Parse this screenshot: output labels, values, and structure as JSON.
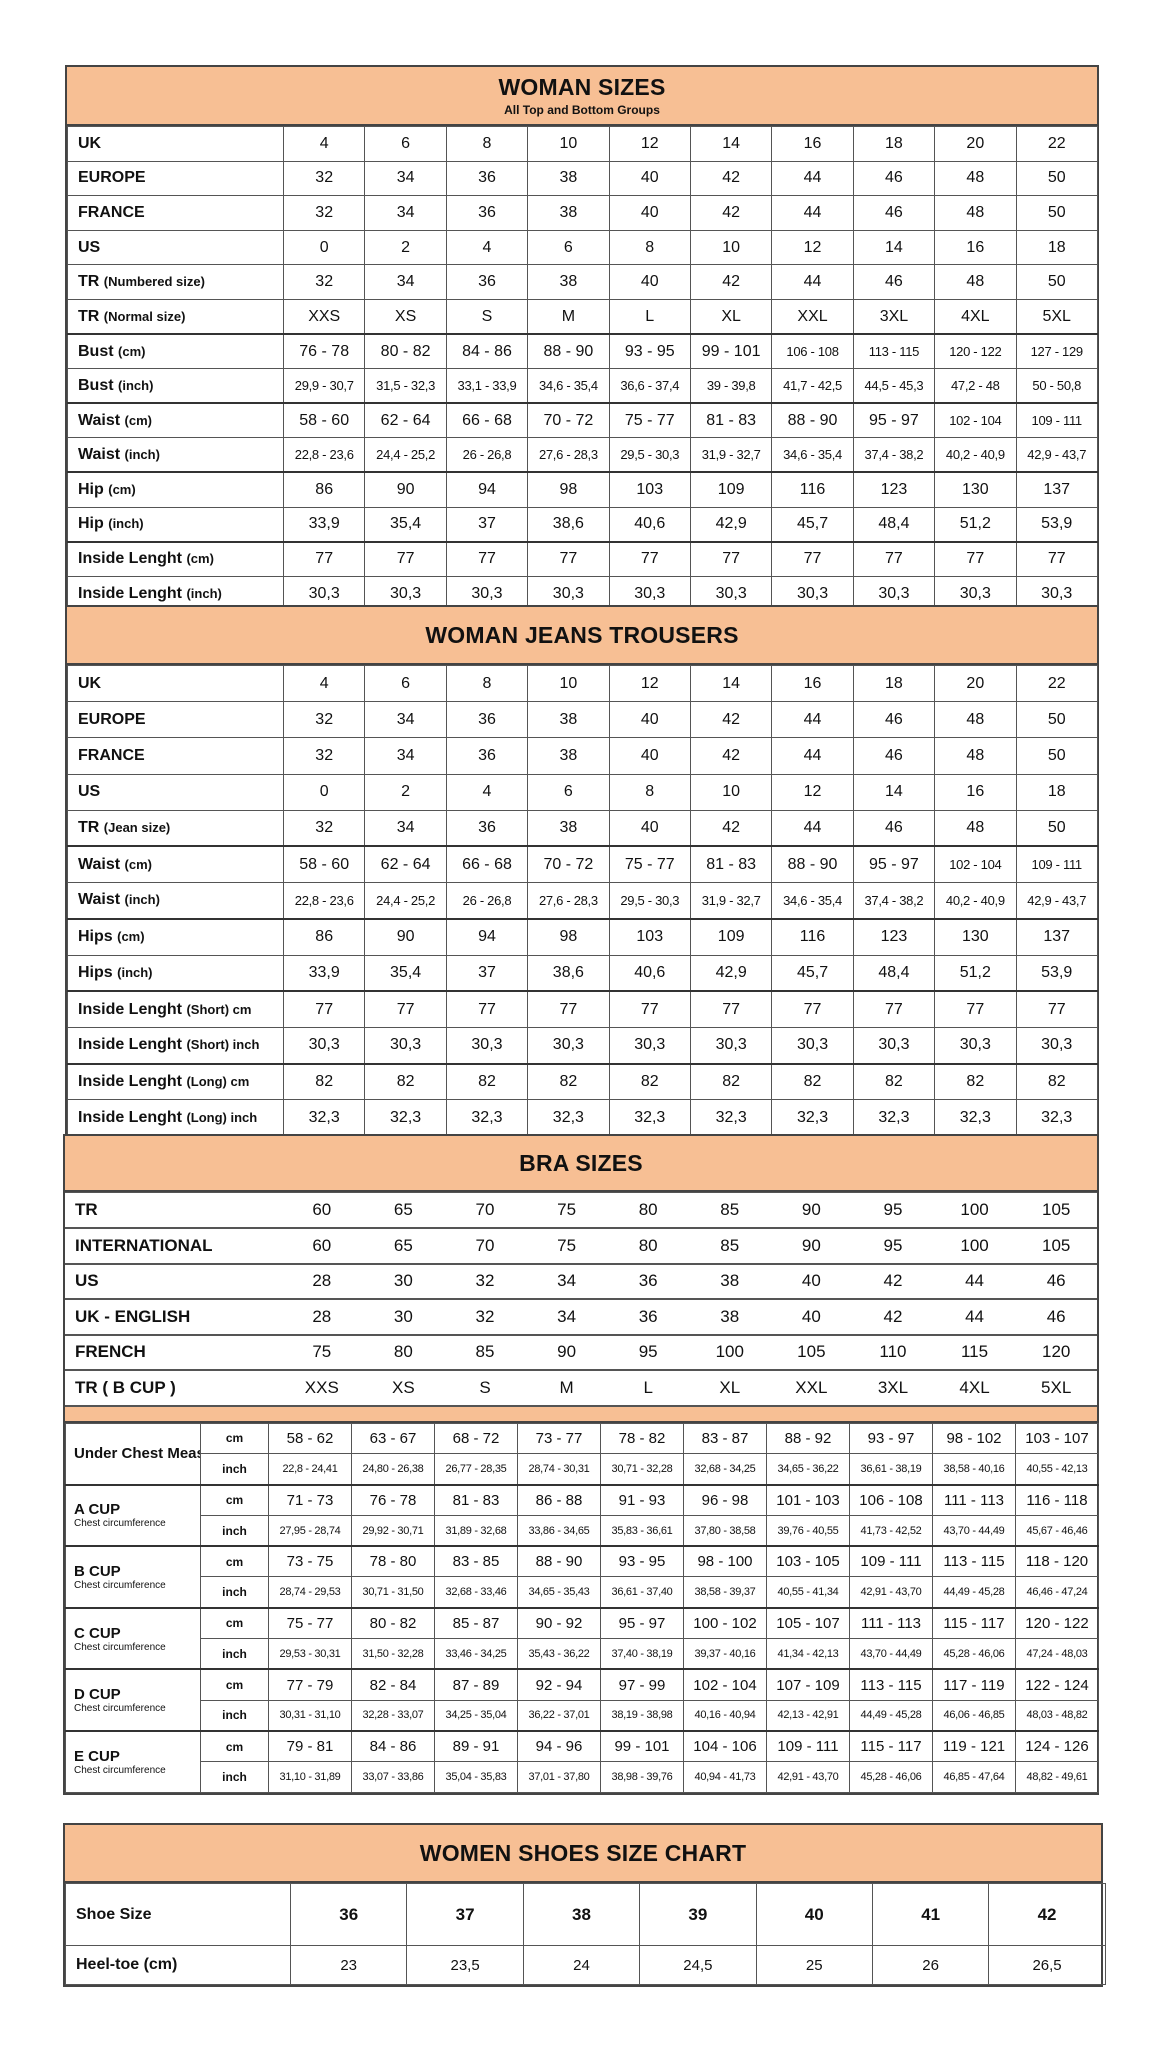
{
  "colors": {
    "header_bg": "#f7bf94",
    "border": "#444444"
  },
  "woman_sizes": {
    "title": "WOMAN SIZES",
    "subtitle": "All Top and Bottom Groups",
    "groups": [
      [
        {
          "label": "UK",
          "unit": "",
          "values": [
            "4",
            "6",
            "8",
            "10",
            "12",
            "14",
            "16",
            "18",
            "20",
            "22"
          ]
        },
        {
          "label": "EUROPE",
          "unit": "",
          "values": [
            "32",
            "34",
            "36",
            "38",
            "40",
            "42",
            "44",
            "46",
            "48",
            "50"
          ]
        },
        {
          "label": "FRANCE",
          "unit": "",
          "values": [
            "32",
            "34",
            "36",
            "38",
            "40",
            "42",
            "44",
            "46",
            "48",
            "50"
          ]
        },
        {
          "label": "US",
          "unit": "",
          "values": [
            "0",
            "2",
            "4",
            "6",
            "8",
            "10",
            "12",
            "14",
            "16",
            "18"
          ]
        },
        {
          "label": "TR",
          "unit": "(Numbered size)",
          "values": [
            "32",
            "34",
            "36",
            "38",
            "40",
            "42",
            "44",
            "46",
            "48",
            "50"
          ]
        },
        {
          "label": "TR",
          "unit": "(Normal size)",
          "values": [
            "XXS",
            "XS",
            "S",
            "M",
            "L",
            "XL",
            "XXL",
            "3XL",
            "4XL",
            "5XL"
          ]
        }
      ],
      [
        {
          "label": "Bust",
          "unit": "(cm)",
          "values": [
            "76 - 78",
            "80 - 82",
            "84 - 86",
            "88 - 90",
            "93 - 95",
            "99 - 101",
            "106 - 108",
            "113 - 115",
            "120 - 122",
            "127 - 129"
          ]
        },
        {
          "label": "Bust",
          "unit": "(inch)",
          "values": [
            "29,9 - 30,7",
            "31,5 - 32,3",
            "33,1 - 33,9",
            "34,6 - 35,4",
            "36,6 - 37,4",
            "39 - 39,8",
            "41,7 - 42,5",
            "44,5 - 45,3",
            "47,2 - 48",
            "50 - 50,8"
          ]
        }
      ],
      [
        {
          "label": "Waist",
          "unit": "(cm)",
          "values": [
            "58 - 60",
            "62 - 64",
            "66 - 68",
            "70 - 72",
            "75 - 77",
            "81 - 83",
            "88 - 90",
            "95 - 97",
            "102 - 104",
            "109 - 111"
          ]
        },
        {
          "label": "Waist",
          "unit": "(inch)",
          "values": [
            "22,8 - 23,6",
            "24,4 - 25,2",
            "26 - 26,8",
            "27,6 - 28,3",
            "29,5 - 30,3",
            "31,9 - 32,7",
            "34,6 - 35,4",
            "37,4 - 38,2",
            "40,2 - 40,9",
            "42,9 - 43,7"
          ]
        }
      ],
      [
        {
          "label": "Hip",
          "unit": "(cm)",
          "values": [
            "86",
            "90",
            "94",
            "98",
            "103",
            "109",
            "116",
            "123",
            "130",
            "137"
          ]
        },
        {
          "label": "Hip",
          "unit": "(inch)",
          "values": [
            "33,9",
            "35,4",
            "37",
            "38,6",
            "40,6",
            "42,9",
            "45,7",
            "48,4",
            "51,2",
            "53,9"
          ]
        }
      ],
      [
        {
          "label": "Inside Lenght",
          "unit": "(cm)",
          "values": [
            "77",
            "77",
            "77",
            "77",
            "77",
            "77",
            "77",
            "77",
            "77",
            "77"
          ]
        },
        {
          "label": "Inside Lenght",
          "unit": "(inch)",
          "values": [
            "30,3",
            "30,3",
            "30,3",
            "30,3",
            "30,3",
            "30,3",
            "30,3",
            "30,3",
            "30,3",
            "30,3"
          ]
        }
      ]
    ]
  },
  "jeans": {
    "title": "WOMAN JEANS TROUSERS",
    "groups": [
      [
        {
          "label": "UK",
          "unit": "",
          "values": [
            "4",
            "6",
            "8",
            "10",
            "12",
            "14",
            "16",
            "18",
            "20",
            "22"
          ]
        },
        {
          "label": "EUROPE",
          "unit": "",
          "values": [
            "32",
            "34",
            "36",
            "38",
            "40",
            "42",
            "44",
            "46",
            "48",
            "50"
          ]
        },
        {
          "label": "FRANCE",
          "unit": "",
          "values": [
            "32",
            "34",
            "36",
            "38",
            "40",
            "42",
            "44",
            "46",
            "48",
            "50"
          ]
        },
        {
          "label": "US",
          "unit": "",
          "values": [
            "0",
            "2",
            "4",
            "6",
            "8",
            "10",
            "12",
            "14",
            "16",
            "18"
          ]
        },
        {
          "label": "TR",
          "unit": "(Jean size)",
          "values": [
            "32",
            "34",
            "36",
            "38",
            "40",
            "42",
            "44",
            "46",
            "48",
            "50"
          ]
        }
      ],
      [
        {
          "label": "Waist",
          "unit": "(cm)",
          "values": [
            "58 - 60",
            "62 - 64",
            "66 - 68",
            "70 - 72",
            "75 - 77",
            "81 - 83",
            "88 - 90",
            "95 - 97",
            "102 - 104",
            "109 - 111"
          ]
        },
        {
          "label": "Waist",
          "unit": "(inch)",
          "values": [
            "22,8 - 23,6",
            "24,4 - 25,2",
            "26 - 26,8",
            "27,6 - 28,3",
            "29,5 - 30,3",
            "31,9 - 32,7",
            "34,6 - 35,4",
            "37,4 - 38,2",
            "40,2 - 40,9",
            "42,9 - 43,7"
          ]
        }
      ],
      [
        {
          "label": "Hips",
          "unit": "(cm)",
          "values": [
            "86",
            "90",
            "94",
            "98",
            "103",
            "109",
            "116",
            "123",
            "130",
            "137"
          ]
        },
        {
          "label": "Hips",
          "unit": "(inch)",
          "values": [
            "33,9",
            "35,4",
            "37",
            "38,6",
            "40,6",
            "42,9",
            "45,7",
            "48,4",
            "51,2",
            "53,9"
          ]
        }
      ],
      [
        {
          "label": "Inside Lenght",
          "unit": "(Short) cm",
          "values": [
            "77",
            "77",
            "77",
            "77",
            "77",
            "77",
            "77",
            "77",
            "77",
            "77"
          ]
        },
        {
          "label": "Inside Lenght",
          "unit": "(Short) inch",
          "values": [
            "30,3",
            "30,3",
            "30,3",
            "30,3",
            "30,3",
            "30,3",
            "30,3",
            "30,3",
            "30,3",
            "30,3"
          ]
        }
      ],
      [
        {
          "label": "Inside Lenght",
          "unit": "(Long) cm",
          "values": [
            "82",
            "82",
            "82",
            "82",
            "82",
            "82",
            "82",
            "82",
            "82",
            "82"
          ]
        },
        {
          "label": "Inside Lenght",
          "unit": "(Long) inch",
          "values": [
            "32,3",
            "32,3",
            "32,3",
            "32,3",
            "32,3",
            "32,3",
            "32,3",
            "32,3",
            "32,3",
            "32,3"
          ]
        }
      ]
    ]
  },
  "bra": {
    "title": "BRA SIZES",
    "rows": [
      {
        "label": "TR",
        "values": [
          "60",
          "65",
          "70",
          "75",
          "80",
          "85",
          "90",
          "95",
          "100",
          "105"
        ]
      },
      {
        "label": "INTERNATIONAL",
        "values": [
          "60",
          "65",
          "70",
          "75",
          "80",
          "85",
          "90",
          "95",
          "100",
          "105"
        ]
      },
      {
        "label": "US",
        "values": [
          "28",
          "30",
          "32",
          "34",
          "36",
          "38",
          "40",
          "42",
          "44",
          "46"
        ]
      },
      {
        "label": "UK - ENGLISH",
        "values": [
          "28",
          "30",
          "32",
          "34",
          "36",
          "38",
          "40",
          "42",
          "44",
          "46"
        ]
      },
      {
        "label": "FRENCH",
        "values": [
          "75",
          "80",
          "85",
          "90",
          "95",
          "100",
          "105",
          "110",
          "115",
          "120"
        ]
      },
      {
        "label": "TR ( B CUP )",
        "values": [
          "XXS",
          "XS",
          "S",
          "M",
          "L",
          "XL",
          "XXL",
          "3XL",
          "4XL",
          "5XL"
        ]
      }
    ],
    "cups": [
      {
        "name": "Under Chest Measurement",
        "desc": "",
        "cm_label": "cm",
        "inch_label": "inch",
        "cm": [
          "58 - 62",
          "63 - 67",
          "68 - 72",
          "73 - 77",
          "78 - 82",
          "83 - 87",
          "88 - 92",
          "93 - 97",
          "98 - 102",
          "103 - 107"
        ],
        "inch": [
          "22,8 - 24,41",
          "24,80 - 26,38",
          "26,77 - 28,35",
          "28,74 - 30,31",
          "30,71 - 32,28",
          "32,68 - 34,25",
          "34,65 - 36,22",
          "36,61 - 38,19",
          "38,58 - 40,16",
          "40,55 - 42,13"
        ]
      },
      {
        "name": "A CUP",
        "desc": "Chest circumference",
        "cm_label": "cm",
        "inch_label": "inch",
        "cm": [
          "71 - 73",
          "76 - 78",
          "81 - 83",
          "86 - 88",
          "91 - 93",
          "96 - 98",
          "101 - 103",
          "106 - 108",
          "111 - 113",
          "116 - 118"
        ],
        "inch": [
          "27,95 - 28,74",
          "29,92 - 30,71",
          "31,89 - 32,68",
          "33,86 - 34,65",
          "35,83 - 36,61",
          "37,80 - 38,58",
          "39,76 - 40,55",
          "41,73 - 42,52",
          "43,70 - 44,49",
          "45,67 - 46,46"
        ]
      },
      {
        "name": "B CUP",
        "desc": "Chest circumference",
        "cm_label": "cm",
        "inch_label": "inch",
        "cm": [
          "73 - 75",
          "78 - 80",
          "83 - 85",
          "88 - 90",
          "93 - 95",
          "98 - 100",
          "103 - 105",
          "109 - 111",
          "113 - 115",
          "118 - 120"
        ],
        "inch": [
          "28,74 - 29,53",
          "30,71 - 31,50",
          "32,68 - 33,46",
          "34,65 - 35,43",
          "36,61 - 37,40",
          "38,58 - 39,37",
          "40,55 - 41,34",
          "42,91 - 43,70",
          "44,49 - 45,28",
          "46,46 - 47,24"
        ]
      },
      {
        "name": "C CUP",
        "desc": "Chest circumference",
        "cm_label": "cm",
        "inch_label": "inch",
        "cm": [
          "75 - 77",
          "80 - 82",
          "85 - 87",
          "90 - 92",
          "95 - 97",
          "100 - 102",
          "105 - 107",
          "111 - 113",
          "115 - 117",
          "120 - 122"
        ],
        "inch": [
          "29,53 - 30,31",
          "31,50 - 32,28",
          "33,46 - 34,25",
          "35,43 - 36,22",
          "37,40 - 38,19",
          "39,37 - 40,16",
          "41,34 - 42,13",
          "43,70 - 44,49",
          "45,28 - 46,06",
          "47,24 - 48,03"
        ]
      },
      {
        "name": "D CUP",
        "desc": "Chest circumference",
        "cm_label": "cm",
        "inch_label": "inch",
        "cm": [
          "77 - 79",
          "82 - 84",
          "87 - 89",
          "92 - 94",
          "97 - 99",
          "102 - 104",
          "107 - 109",
          "113 - 115",
          "117 - 119",
          "122 - 124"
        ],
        "inch": [
          "30,31 - 31,10",
          "32,28 - 33,07",
          "34,25 - 35,04",
          "36,22 - 37,01",
          "38,19 - 38,98",
          "40,16 - 40,94",
          "42,13 - 42,91",
          "44,49 - 45,28",
          "46,06 - 46,85",
          "48,03 - 48,82"
        ]
      },
      {
        "name": "E CUP",
        "desc": "Chest circumference",
        "cm_label": "cm",
        "inch_label": "inch",
        "cm": [
          "79 - 81",
          "84 - 86",
          "89 - 91",
          "94 - 96",
          "99 - 101",
          "104 - 106",
          "109 - 111",
          "115 - 117",
          "119 - 121",
          "124 - 126"
        ],
        "inch": [
          "31,10 - 31,89",
          "33,07 - 33,86",
          "35,04 - 35,83",
          "37,01 - 37,80",
          "38,98 - 39,76",
          "40,94 - 41,73",
          "42,91 - 43,70",
          "45,28 - 46,06",
          "46,85 - 47,64",
          "48,82 - 49,61"
        ]
      }
    ]
  },
  "shoes": {
    "title": "WOMEN SHOES SIZE CHART",
    "rows": [
      {
        "label": "Shoe Size",
        "values": [
          "36",
          "37",
          "38",
          "39",
          "40",
          "41",
          "42"
        ]
      },
      {
        "label": "Heel-toe (cm)",
        "values": [
          "23",
          "23,5",
          "24",
          "24,5",
          "25",
          "26",
          "26,5"
        ]
      }
    ]
  }
}
